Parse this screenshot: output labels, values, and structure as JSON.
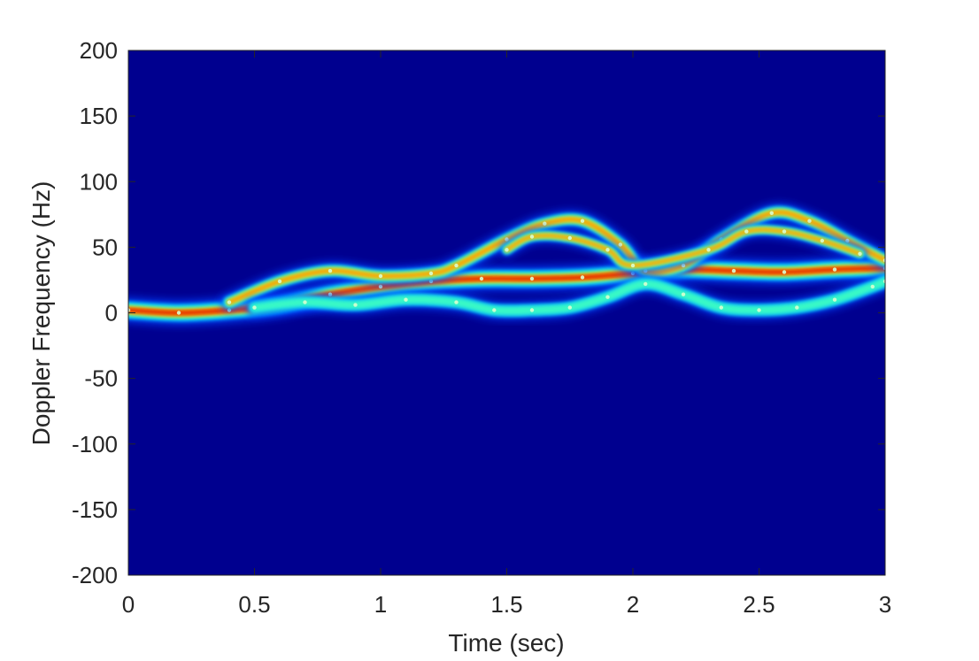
{
  "chart_data": {
    "type": "heatmap",
    "xlabel": "Time (sec)",
    "ylabel": "Doppler Frequency (Hz)",
    "xlim": [
      0,
      3
    ],
    "ylim": [
      -200,
      200
    ],
    "xticks": [
      "0",
      "0.5",
      "1",
      "1.5",
      "2",
      "2.5",
      "3"
    ],
    "yticks": [
      "200",
      "150",
      "100",
      "50",
      "0",
      "-50",
      "-100",
      "-150",
      "-200"
    ],
    "colormap": "jet",
    "background_color": "#00008f",
    "grid": false,
    "traces": [
      {
        "role": "main torso return",
        "width_hz": 7,
        "intensity": 1.0,
        "points": [
          [
            0,
            2
          ],
          [
            0.2,
            0
          ],
          [
            0.4,
            2
          ],
          [
            0.6,
            6
          ],
          [
            0.8,
            14
          ],
          [
            1.0,
            20
          ],
          [
            1.2,
            24
          ],
          [
            1.4,
            26
          ],
          [
            1.6,
            26
          ],
          [
            1.8,
            27
          ],
          [
            2.0,
            30
          ],
          [
            2.2,
            33
          ],
          [
            2.4,
            32
          ],
          [
            2.6,
            31
          ],
          [
            2.8,
            33
          ],
          [
            3.0,
            34
          ]
        ]
      },
      {
        "role": "upper micro-Doppler envelope",
        "width_hz": 5,
        "intensity": 0.5,
        "points": [
          [
            0.4,
            8
          ],
          [
            0.6,
            24
          ],
          [
            0.8,
            32
          ],
          [
            1.0,
            28
          ],
          [
            1.2,
            30
          ],
          [
            1.3,
            36
          ],
          [
            1.5,
            56
          ],
          [
            1.65,
            68
          ],
          [
            1.8,
            70
          ],
          [
            1.95,
            52
          ],
          [
            2.05,
            32
          ],
          [
            2.2,
            36
          ],
          [
            2.35,
            56
          ],
          [
            2.55,
            76
          ],
          [
            2.7,
            70
          ],
          [
            2.85,
            55
          ],
          [
            3.0,
            40
          ]
        ]
      },
      {
        "role": "inner upper band",
        "width_hz": 4,
        "intensity": 0.55,
        "points": [
          [
            1.5,
            48
          ],
          [
            1.6,
            58
          ],
          [
            1.75,
            57
          ],
          [
            1.9,
            48
          ],
          [
            2.0,
            36
          ],
          [
            2.3,
            48
          ],
          [
            2.45,
            62
          ],
          [
            2.6,
            62
          ],
          [
            2.75,
            55
          ],
          [
            2.9,
            45
          ]
        ]
      },
      {
        "role": "lower micro-Doppler envelope",
        "width_hz": 5,
        "intensity": 0.45,
        "points": [
          [
            0.5,
            4
          ],
          [
            0.7,
            8
          ],
          [
            0.9,
            6
          ],
          [
            1.1,
            10
          ],
          [
            1.3,
            8
          ],
          [
            1.45,
            2
          ],
          [
            1.6,
            2
          ],
          [
            1.75,
            4
          ],
          [
            1.9,
            12
          ],
          [
            2.05,
            22
          ],
          [
            2.2,
            14
          ],
          [
            2.35,
            4
          ],
          [
            2.5,
            2
          ],
          [
            2.65,
            4
          ],
          [
            2.8,
            10
          ],
          [
            2.95,
            20
          ],
          [
            3.0,
            24
          ]
        ]
      }
    ]
  }
}
